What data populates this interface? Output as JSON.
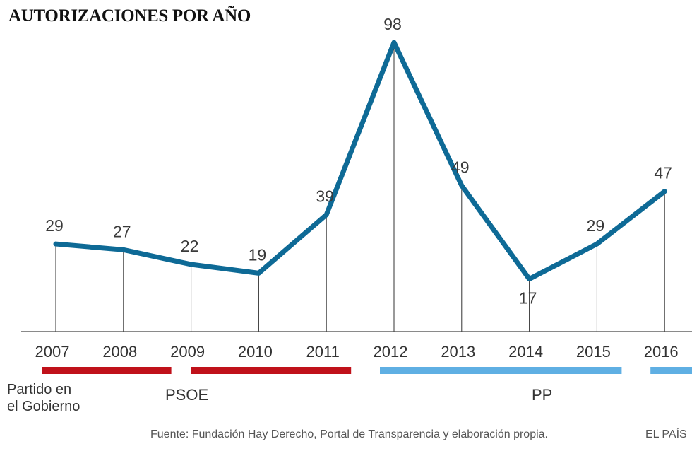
{
  "chart_data": {
    "type": "line",
    "title": "AUTORIZACIONES POR AÑO",
    "categories": [
      "2007",
      "2008",
      "2009",
      "2010",
      "2011",
      "2012",
      "2013",
      "2014",
      "2015",
      "2016"
    ],
    "values": [
      29,
      27,
      22,
      19,
      39,
      98,
      49,
      17,
      29,
      47
    ],
    "data_labels": [
      "29",
      "27",
      "22",
      "19",
      "39",
      "98",
      "49",
      "17",
      "29",
      "47"
    ],
    "ylim": [
      -1,
      98
    ],
    "xlabel": "",
    "ylabel": "",
    "grid": false,
    "series_color": "#0e6a96",
    "party_periods": [
      {
        "party": "PSOE",
        "from": "2007",
        "to": "2009",
        "color": "#c0111a"
      },
      {
        "party": "PSOE",
        "from": "2009",
        "to": "2011",
        "color": "#c0111a"
      },
      {
        "party": "PP",
        "from": "2012",
        "to": "2015",
        "color": "#5fafe3"
      },
      {
        "party": "PP",
        "from": "2016",
        "to": "2016",
        "color": "#5fafe3"
      }
    ]
  },
  "legend": {
    "caption": "Partido en\nel Gobierno",
    "psoe_label": "PSOE",
    "pp_label": "PP"
  },
  "footer": {
    "source": "Fuente: Fundación Hay Derecho, Portal de Transparencia y elaboración propia.",
    "brand": "EL PAÍS"
  }
}
